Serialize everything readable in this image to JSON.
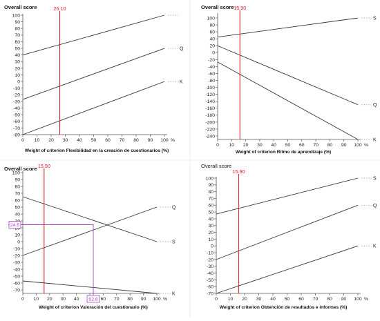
{
  "chart_data": [
    {
      "type": "line",
      "title": "Overall score",
      "xlabel": "Weight of criterion Flexibilidad en la creación de cuestionarios (%)",
      "x_unit": "%",
      "xlim": [
        0,
        100
      ],
      "ylim": [
        -80,
        100
      ],
      "xticks": [
        0,
        10,
        20,
        30,
        40,
        50,
        60,
        70,
        80,
        90,
        100
      ],
      "yticks": [
        100,
        90,
        80,
        70,
        60,
        50,
        40,
        30,
        20,
        10,
        0,
        -10,
        -20,
        -30,
        -40,
        -50,
        -60,
        -70,
        -80
      ],
      "marker": {
        "x": 26.1,
        "label": "26.10",
        "color": "#e8141e"
      },
      "series": [
        {
          "name": "",
          "x": [
            0,
            100
          ],
          "y": [
            40,
            100
          ]
        },
        {
          "name": "Q",
          "x": [
            0,
            100
          ],
          "y": [
            -27,
            50
          ]
        },
        {
          "name": "K",
          "x": [
            0,
            100
          ],
          "y": [
            -80,
            0
          ]
        }
      ]
    },
    {
      "type": "line",
      "title": "Overall score",
      "xlabel": "Weight of criterion Ritmo de aprendizaje (%)",
      "x_unit": "%",
      "xlim": [
        0,
        100
      ],
      "ylim": [
        -250,
        110
      ],
      "xticks": [
        0,
        10,
        20,
        30,
        40,
        50,
        60,
        70,
        80,
        90,
        100
      ],
      "yticks": [
        100,
        80,
        60,
        40,
        20,
        0,
        -20,
        -40,
        -60,
        -80,
        -100,
        -120,
        -140,
        -160,
        -180,
        -200,
        -220,
        -240
      ],
      "marker": {
        "x": 15.9,
        "label": "15.90",
        "color": "#e8141e"
      },
      "series": [
        {
          "name": "S",
          "x": [
            0,
            100
          ],
          "y": [
            45,
            100
          ]
        },
        {
          "name": "Q",
          "x": [
            0,
            100
          ],
          "y": [
            20,
            -150
          ]
        },
        {
          "name": "K",
          "x": [
            0,
            100
          ],
          "y": [
            -27,
            -250
          ]
        }
      ]
    },
    {
      "type": "line",
      "title": "Overall score",
      "xlabel": "Weight of criterion Valoración del cuestionario (%)",
      "x_unit": "%",
      "xlim": [
        0,
        100
      ],
      "ylim": [
        -75,
        100
      ],
      "xticks": [
        0,
        10,
        20,
        30,
        40,
        50,
        60,
        70,
        80,
        90,
        100
      ],
      "yticks": [
        100,
        90,
        80,
        70,
        60,
        50,
        40,
        30,
        20,
        10,
        0,
        -10,
        -20,
        -30,
        -40,
        -50,
        -60,
        -70
      ],
      "marker": {
        "x": 15.9,
        "label": "15.90",
        "color": "#e8141e"
      },
      "crosshair": {
        "x": 52.6,
        "y": 24.5,
        "x_label": "52.6",
        "y_label": "24.5",
        "color": "#b040c8"
      },
      "series": [
        {
          "name": "Q",
          "x": [
            0,
            100
          ],
          "y": [
            -20,
            50
          ]
        },
        {
          "name": "S",
          "x": [
            0,
            100
          ],
          "y": [
            65,
            0
          ]
        },
        {
          "name": "K",
          "x": [
            0,
            100
          ],
          "y": [
            -57,
            -75
          ]
        }
      ]
    },
    {
      "type": "line",
      "title": "Overall score",
      "xlabel": "Weight of criterion Obtención de resultados e informes (%)",
      "x_unit": "%",
      "xlim": [
        0,
        100
      ],
      "ylim": [
        -70,
        100
      ],
      "xticks": [
        0,
        10,
        20,
        30,
        40,
        50,
        60,
        70,
        80,
        90,
        100
      ],
      "yticks": [
        100,
        90,
        80,
        70,
        60,
        50,
        40,
        30,
        20,
        10,
        0,
        -10,
        -20,
        -30,
        -40,
        -50,
        -60,
        -70
      ],
      "marker": {
        "x": 15.9,
        "label": "15.90",
        "color": "#e8141e"
      },
      "series": [
        {
          "name": "S",
          "x": [
            0,
            100
          ],
          "y": [
            47,
            100
          ]
        },
        {
          "name": "Q",
          "x": [
            0,
            100
          ],
          "y": [
            -20,
            60
          ]
        },
        {
          "name": "K",
          "x": [
            0,
            100
          ],
          "y": [
            -70,
            0
          ]
        }
      ]
    }
  ]
}
